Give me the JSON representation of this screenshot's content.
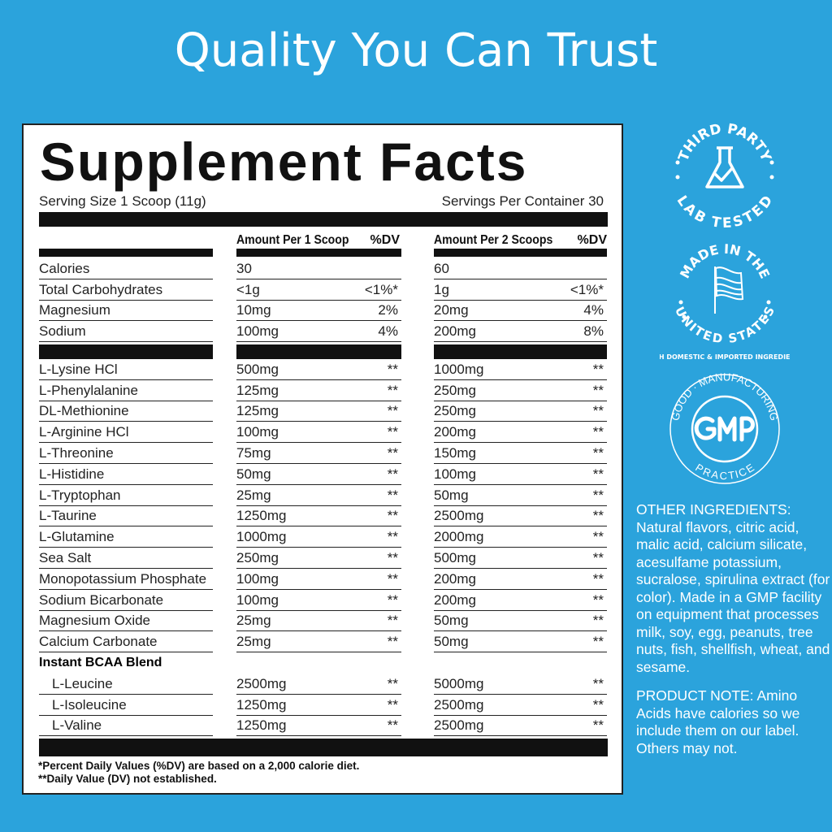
{
  "title": "Quality You Can Trust",
  "label": {
    "heading": "Supplement Facts",
    "serving_size": "Serving Size 1 Scoop (11g)",
    "servings_per_container": "Servings Per Container 30",
    "col1_header": "Amount Per 1 Scoop",
    "col2_header": "Amount Per 2 Scoops",
    "dv_header": "%DV",
    "rows_top": [
      {
        "name": "Calories",
        "a1": "30",
        "d1": "",
        "a2": "60",
        "d2": ""
      },
      {
        "name": "Total Carbohydrates",
        "a1": "<1g",
        "d1": "<1%*",
        "a2": "1g",
        "d2": "<1%*"
      },
      {
        "name": "Magnesium",
        "a1": "10mg",
        "d1": "2%",
        "a2": "20mg",
        "d2": "4%"
      },
      {
        "name": "Sodium",
        "a1": "100mg",
        "d1": "4%",
        "a2": "200mg",
        "d2": "8%"
      }
    ],
    "rows_main": [
      {
        "name": "L-Lysine HCl",
        "a1": "500mg",
        "d1": "**",
        "a2": "1000mg",
        "d2": "**"
      },
      {
        "name": "L-Phenylalanine",
        "a1": "125mg",
        "d1": "**",
        "a2": "250mg",
        "d2": "**"
      },
      {
        "name": "DL-Methionine",
        "a1": "125mg",
        "d1": "**",
        "a2": "250mg",
        "d2": "**"
      },
      {
        "name": "L-Arginine HCl",
        "a1": "100mg",
        "d1": "**",
        "a2": "200mg",
        "d2": "**"
      },
      {
        "name": "L-Threonine",
        "a1": "75mg",
        "d1": "**",
        "a2": "150mg",
        "d2": "**"
      },
      {
        "name": "L-Histidine",
        "a1": "50mg",
        "d1": "**",
        "a2": "100mg",
        "d2": "**"
      },
      {
        "name": "L-Tryptophan",
        "a1": "25mg",
        "d1": "**",
        "a2": "50mg",
        "d2": "**"
      },
      {
        "name": "L-Taurine",
        "a1": "1250mg",
        "d1": "**",
        "a2": "2500mg",
        "d2": "**"
      },
      {
        "name": "L-Glutamine",
        "a1": "1000mg",
        "d1": "**",
        "a2": "2000mg",
        "d2": "**"
      },
      {
        "name": "Sea Salt",
        "a1": "250mg",
        "d1": "**",
        "a2": "500mg",
        "d2": "**"
      },
      {
        "name": "Monopotassium Phosphate",
        "a1": "100mg",
        "d1": "**",
        "a2": "200mg",
        "d2": "**"
      },
      {
        "name": "Sodium Bicarbonate",
        "a1": "100mg",
        "d1": "**",
        "a2": "200mg",
        "d2": "**"
      },
      {
        "name": "Magnesium Oxide",
        "a1": "25mg",
        "d1": "**",
        "a2": "50mg",
        "d2": "**"
      },
      {
        "name": "Calcium Carbonate",
        "a1": "25mg",
        "d1": "**",
        "a2": "50mg",
        "d2": "**"
      }
    ],
    "blend_title": "Instant BCAA Blend",
    "rows_blend": [
      {
        "name": "L-Leucine",
        "a1": "2500mg",
        "d1": "**",
        "a2": "5000mg",
        "d2": "**"
      },
      {
        "name": "L-Isoleucine",
        "a1": "1250mg",
        "d1": "**",
        "a2": "2500mg",
        "d2": "**"
      },
      {
        "name": "L-Valine",
        "a1": "1250mg",
        "d1": "**",
        "a2": "2500mg",
        "d2": "**"
      }
    ],
    "footnote_1": "*Percent Daily Values (%DV) are based on a 2,000 calorie diet.",
    "footnote_2": "**Daily Value (DV) not established."
  },
  "badges": {
    "lab": {
      "top": "THIRD PARTY",
      "bottom": "LAB TESTED",
      "icon": "flask-check-icon"
    },
    "usa": {
      "top": "MADE IN THE",
      "bottom": "UNITED STATES",
      "sub": "WITH DOMESTIC & IMPORTED INGREDIENTS",
      "icon": "us-flag-icon"
    },
    "gmp": {
      "center": "GMP",
      "top": "GOOD · MANUFACTURING",
      "bottom": "PRACTICE"
    }
  },
  "side": {
    "other_ingredients": "OTHER INGREDIENTS: Natural flavors, citric acid, malic acid, calcium silicate, acesulfame potassium, sucralose, spirulina extract (for color). Made in a GMP facility on equipment that processes milk, soy, egg, peanuts, tree nuts, fish, shellfish, wheat, and sesame.",
    "product_note": "PRODUCT NOTE: Amino Acids have calories so we include them on our label. Others may not."
  },
  "colors": {
    "background": "#2ba3dc",
    "label_bg": "#ffffff",
    "ink": "#111111"
  }
}
